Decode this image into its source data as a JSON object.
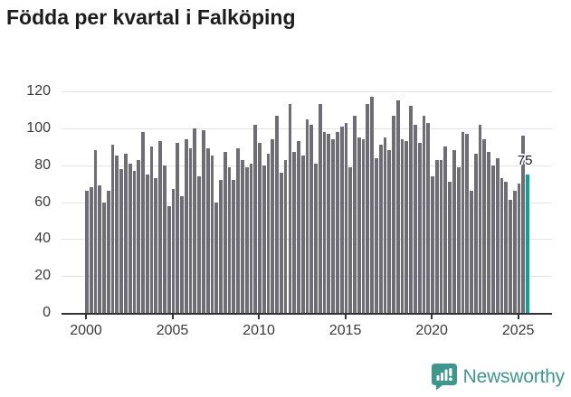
{
  "title": "Födda per kvartal i Falköping",
  "chart_data": {
    "type": "bar",
    "title": "Födda per kvartal i Falköping",
    "frequency": "quarterly",
    "series_start": "2000 Q1",
    "series_end": "2025 Q3",
    "values": [
      66,
      68,
      88,
      69,
      60,
      66,
      91,
      85,
      78,
      86,
      81,
      77,
      83,
      98,
      75,
      90,
      73,
      93,
      80,
      58,
      67,
      92,
      63,
      94,
      89,
      100,
      74,
      99,
      89,
      85,
      60,
      72,
      87,
      79,
      72,
      89,
      83,
      79,
      81,
      102,
      92,
      80,
      86,
      94,
      107,
      76,
      83,
      113,
      87,
      93,
      85,
      105,
      102,
      81,
      113,
      98,
      97,
      94,
      98,
      101,
      103,
      79,
      107,
      95,
      94,
      113,
      117,
      84,
      91,
      95,
      88,
      107,
      115,
      94,
      93,
      112,
      102,
      92,
      107,
      103,
      74,
      83,
      83,
      90,
      71,
      88,
      79,
      98,
      97,
      66,
      86,
      102,
      94,
      87,
      80,
      84,
      73,
      71,
      61,
      66,
      70,
      96,
      75
    ],
    "ylim": [
      0,
      120
    ],
    "yticks": [
      0,
      20,
      40,
      60,
      80,
      100,
      120
    ],
    "x_tick_years": [
      2000,
      2005,
      2010,
      2015,
      2020,
      2025
    ],
    "grid": true,
    "bar_color": "#6e6d76",
    "highlight": {
      "index": 102,
      "color": "#0aa294",
      "label": "75"
    },
    "axis_color": "#333333",
    "gridline_color": "#e2e2e2"
  },
  "footer": {
    "brand": "Newsworthy",
    "brand_color": "#3f978d"
  }
}
